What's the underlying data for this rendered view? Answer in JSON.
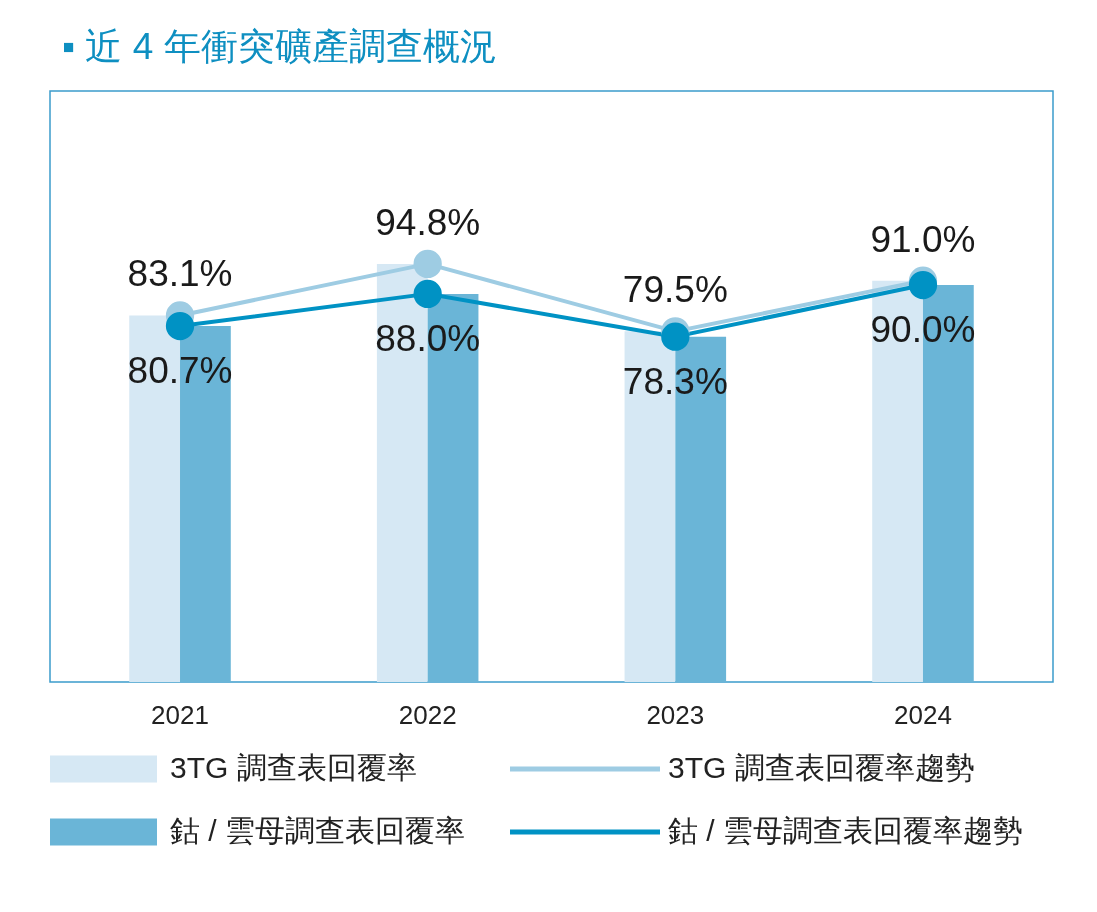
{
  "chart_data": {
    "type": "bar",
    "title": "▪ 近 4 年衝突礦產調查概況",
    "categories": [
      "2021",
      "2022",
      "2023",
      "2024"
    ],
    "series": [
      {
        "name": "3TG 調查表回覆率",
        "color": "#d6e8f4",
        "values": [
          83.1,
          94.8,
          79.5,
          91.0
        ]
      },
      {
        "name": "鈷 / 雲母調查表回覆率",
        "color": "#6ab5d7",
        "values": [
          80.7,
          88.0,
          78.3,
          90.0
        ]
      },
      {
        "name": "3TG 調查表回覆率趨勢",
        "type": "line",
        "color": "#9ecce3",
        "values": [
          83.1,
          94.8,
          79.5,
          91.0
        ],
        "value_labels": [
          "83.1%",
          "94.8%",
          "79.5%",
          "91.0%"
        ]
      },
      {
        "name": "鈷 / 雲母調查表回覆率趨勢",
        "type": "line",
        "color": "#0092c4",
        "values": [
          80.7,
          88.0,
          78.3,
          90.0
        ],
        "value_labels": [
          "80.7%",
          "88.0%",
          "78.3%",
          "90.0%"
        ]
      }
    ],
    "ylim": [
      0,
      134
    ],
    "tick_labels": "x",
    "grid": false,
    "legend": "bottom",
    "marker": "circle",
    "line_style": "solid"
  }
}
